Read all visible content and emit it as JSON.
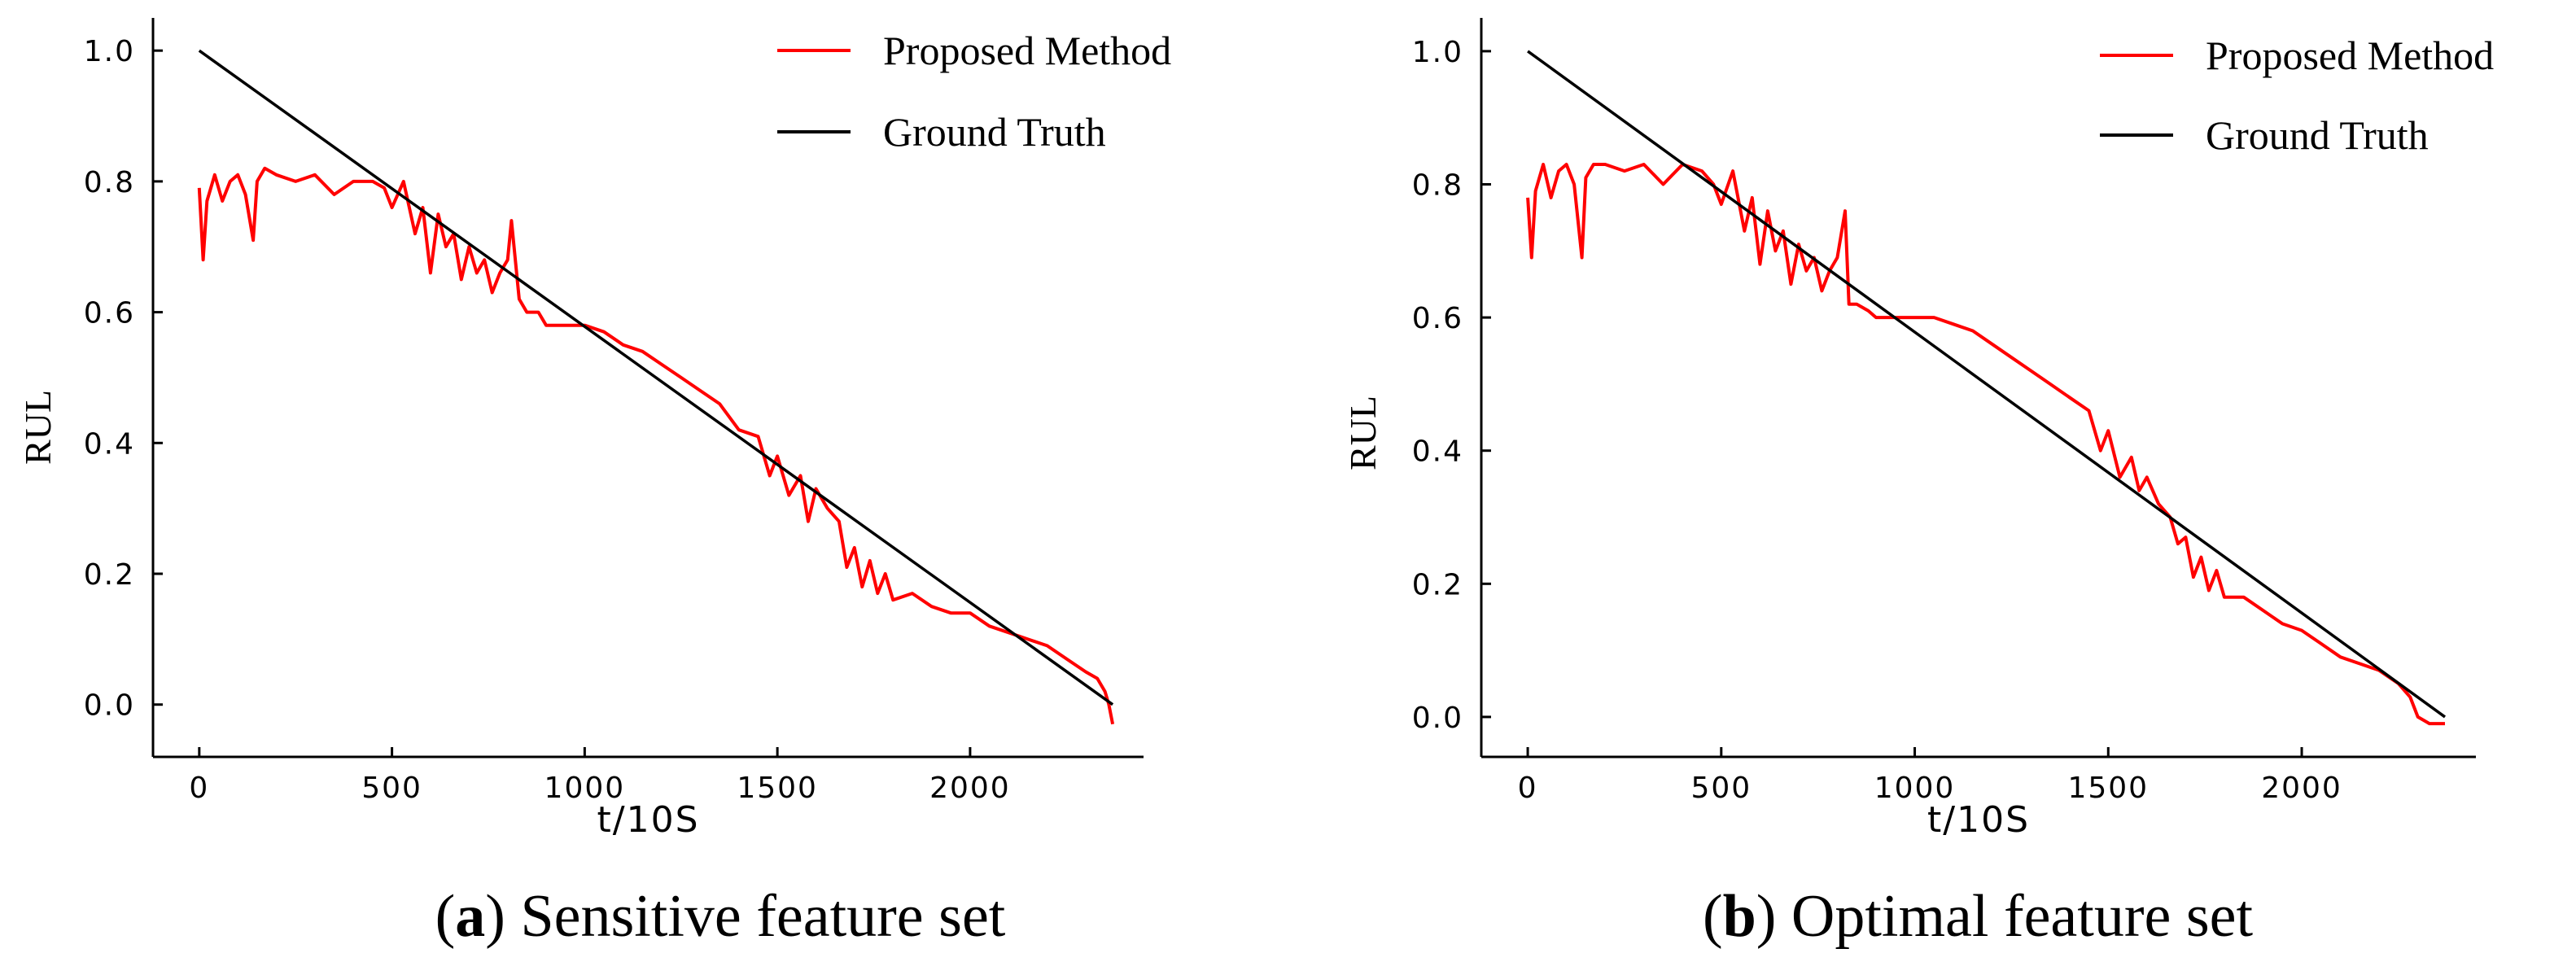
{
  "chart_data": [
    {
      "type": "line",
      "title": "",
      "caption_letter": "a",
      "caption_text": "Sensitive feature set",
      "xlabel": "t/10S",
      "ylabel": "RUL",
      "xlim": [
        -120,
        2450
      ],
      "ylim": [
        -0.08,
        1.05
      ],
      "xticks": [
        0,
        500,
        1000,
        1500,
        2000
      ],
      "yticks": [
        0.0,
        0.2,
        0.4,
        0.6,
        0.8,
        1.0
      ],
      "ytick_labels": [
        "0.0",
        "0.2",
        "0.4",
        "0.6",
        "0.8",
        "1.0"
      ],
      "legend": [
        "Proposed Method",
        "Ground Truth"
      ],
      "series": [
        {
          "name": "Proposed Method",
          "color": "#ff0000",
          "x": [
            0,
            10,
            20,
            40,
            60,
            80,
            100,
            120,
            140,
            150,
            170,
            200,
            250,
            300,
            350,
            400,
            450,
            480,
            500,
            530,
            560,
            580,
            600,
            620,
            640,
            660,
            680,
            700,
            720,
            740,
            760,
            780,
            800,
            810,
            830,
            850,
            880,
            900,
            950,
            1000,
            1050,
            1100,
            1150,
            1200,
            1250,
            1300,
            1350,
            1400,
            1450,
            1480,
            1500,
            1530,
            1560,
            1580,
            1600,
            1630,
            1660,
            1680,
            1700,
            1720,
            1740,
            1760,
            1780,
            1800,
            1850,
            1900,
            1950,
            2000,
            2050,
            2100,
            2150,
            2200,
            2250,
            2300,
            2330,
            2350,
            2360,
            2370
          ],
          "y": [
            0.79,
            0.68,
            0.77,
            0.81,
            0.77,
            0.8,
            0.81,
            0.78,
            0.71,
            0.8,
            0.82,
            0.81,
            0.8,
            0.81,
            0.78,
            0.8,
            0.8,
            0.79,
            0.76,
            0.8,
            0.72,
            0.76,
            0.66,
            0.75,
            0.7,
            0.72,
            0.65,
            0.7,
            0.66,
            0.68,
            0.63,
            0.66,
            0.68,
            0.74,
            0.62,
            0.6,
            0.6,
            0.58,
            0.58,
            0.58,
            0.57,
            0.55,
            0.54,
            0.52,
            0.5,
            0.48,
            0.46,
            0.42,
            0.41,
            0.35,
            0.38,
            0.32,
            0.35,
            0.28,
            0.33,
            0.3,
            0.28,
            0.21,
            0.24,
            0.18,
            0.22,
            0.17,
            0.2,
            0.16,
            0.17,
            0.15,
            0.14,
            0.14,
            0.12,
            0.11,
            0.1,
            0.09,
            0.07,
            0.05,
            0.04,
            0.02,
            0.0,
            -0.03
          ]
        },
        {
          "name": "Ground Truth",
          "color": "#000000",
          "x": [
            0,
            2370
          ],
          "y": [
            1.0,
            0.0
          ]
        }
      ]
    },
    {
      "type": "line",
      "title": "",
      "caption_letter": "b",
      "caption_text": "Optimal feature set",
      "xlabel": "t/10S",
      "ylabel": "RUL",
      "xlim": [
        -120,
        2450
      ],
      "ylim": [
        -0.06,
        1.05
      ],
      "xticks": [
        0,
        500,
        1000,
        1500,
        2000
      ],
      "yticks": [
        0.0,
        0.2,
        0.4,
        0.6,
        0.8,
        1.0
      ],
      "ytick_labels": [
        "0.0",
        "0.2",
        "0.4",
        "0.6",
        "0.8",
        "1.0"
      ],
      "legend": [
        "Proposed Method",
        "Ground Truth"
      ],
      "series": [
        {
          "name": "Proposed Method",
          "color": "#ff0000",
          "x": [
            0,
            10,
            20,
            40,
            60,
            80,
            100,
            120,
            140,
            150,
            170,
            200,
            250,
            300,
            350,
            400,
            450,
            480,
            500,
            530,
            560,
            580,
            600,
            620,
            640,
            660,
            680,
            700,
            720,
            740,
            760,
            780,
            800,
            820,
            830,
            850,
            880,
            900,
            950,
            1000,
            1050,
            1100,
            1150,
            1200,
            1250,
            1300,
            1350,
            1400,
            1450,
            1480,
            1500,
            1530,
            1560,
            1580,
            1600,
            1630,
            1660,
            1680,
            1700,
            1720,
            1740,
            1760,
            1780,
            1800,
            1850,
            1900,
            1950,
            2000,
            2050,
            2100,
            2150,
            2200,
            2250,
            2280,
            2300,
            2330,
            2370
          ],
          "y": [
            0.78,
            0.69,
            0.79,
            0.83,
            0.78,
            0.82,
            0.83,
            0.8,
            0.69,
            0.81,
            0.83,
            0.83,
            0.82,
            0.83,
            0.8,
            0.83,
            0.82,
            0.8,
            0.77,
            0.82,
            0.73,
            0.78,
            0.68,
            0.76,
            0.7,
            0.73,
            0.65,
            0.71,
            0.67,
            0.69,
            0.64,
            0.67,
            0.69,
            0.76,
            0.62,
            0.62,
            0.61,
            0.6,
            0.6,
            0.6,
            0.6,
            0.59,
            0.58,
            0.56,
            0.54,
            0.52,
            0.5,
            0.48,
            0.46,
            0.4,
            0.43,
            0.36,
            0.39,
            0.34,
            0.36,
            0.32,
            0.3,
            0.26,
            0.27,
            0.21,
            0.24,
            0.19,
            0.22,
            0.18,
            0.18,
            0.16,
            0.14,
            0.13,
            0.11,
            0.09,
            0.08,
            0.07,
            0.05,
            0.03,
            0.0,
            -0.01,
            -0.01
          ]
        },
        {
          "name": "Ground Truth",
          "color": "#000000",
          "x": [
            0,
            2370
          ],
          "y": [
            1.0,
            0.0
          ]
        }
      ]
    }
  ]
}
